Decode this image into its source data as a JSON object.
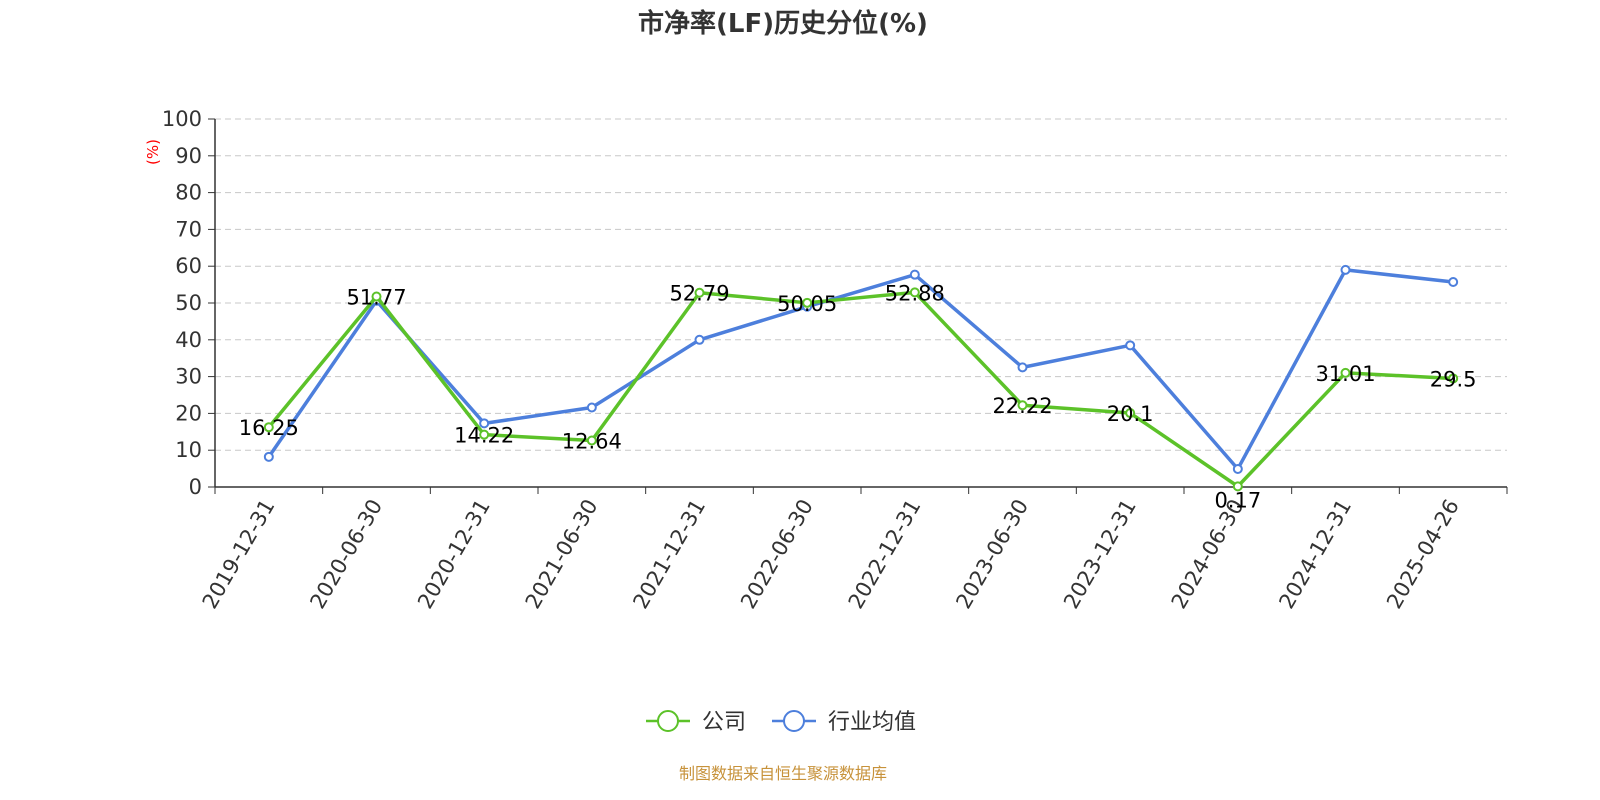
{
  "chart_data": {
    "type": "line",
    "title": "市净率(LF)历史分位(%)",
    "ylabel": "(%)",
    "ylim": [
      0,
      100
    ],
    "yticks": [
      0,
      10,
      20,
      30,
      40,
      50,
      60,
      70,
      80,
      90,
      100
    ],
    "grid": true,
    "legend_position": "bottom",
    "categories": [
      "2019-12-31",
      "2020-06-30",
      "2020-12-31",
      "2021-06-30",
      "2021-12-31",
      "2022-06-30",
      "2022-12-31",
      "2023-06-30",
      "2023-12-31",
      "2024-06-30",
      "2024-12-31",
      "2025-04-26"
    ],
    "series": [
      {
        "name": "公司",
        "color": "#5cc229",
        "values": [
          16.25,
          51.77,
          14.22,
          12.64,
          52.79,
          50.05,
          52.88,
          22.22,
          20.1,
          0.17,
          31.01,
          29.5
        ],
        "labels": [
          "16.25",
          "51.77",
          "14.22",
          "12.64",
          "52.79",
          "50.05",
          "52.88",
          "22.22",
          "20.1",
          "0.17",
          "31.01",
          "29.5"
        ]
      },
      {
        "name": "行业均值",
        "color": "#4d7fdc",
        "values": [
          8.2,
          50.6,
          17.3,
          21.6,
          40.0,
          49.0,
          57.7,
          32.5,
          38.5,
          4.9,
          59.0,
          55.7
        ]
      }
    ],
    "source": "制图数据来自恒生聚源数据库"
  }
}
